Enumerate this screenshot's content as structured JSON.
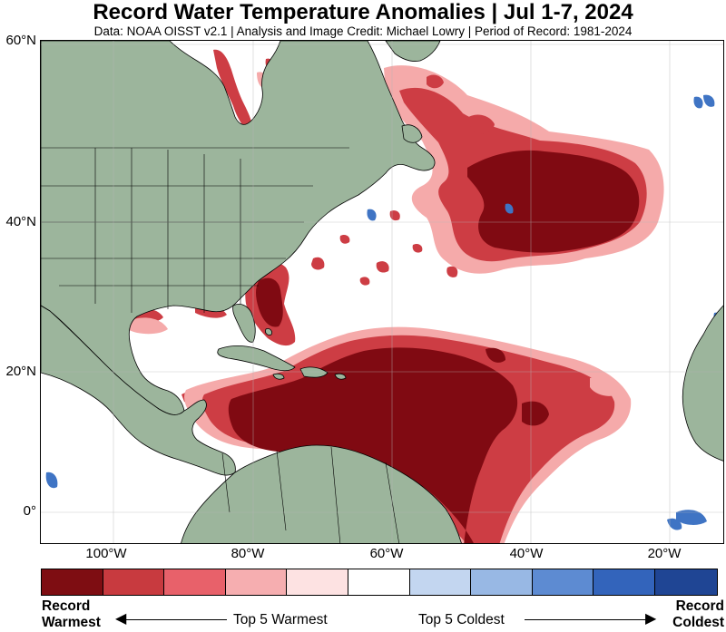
{
  "title": "Record Water Temperature Anomalies | Jul 1-7, 2024",
  "subtitle": "Data: NOAA OISST v2.1 | Analysis and Image Credit: Michael Lowry | Period of Record: 1981-2024",
  "map": {
    "lat_labels": [
      "60°N",
      "40°N",
      "20°N",
      "0°"
    ],
    "lon_labels": [
      "100°W",
      "80°W",
      "60°W",
      "40°W",
      "20°W"
    ],
    "colors": {
      "land": "#9cb59c",
      "ocean": "#ffffff",
      "grid": "#c8c8c8",
      "record_warm": "#800a12",
      "warm_mid": "#cd3d44",
      "warm_light": "#f5aaaa",
      "cold": "#3f74c4"
    }
  },
  "legend": {
    "swatches": [
      "#7e0d12",
      "#c83a3f",
      "#e8616a",
      "#f6aeb0",
      "#fde2e2",
      "#ffffff",
      "#c3d6f0",
      "#98b8e4",
      "#5d8bd2",
      "#3364bb",
      "#1f4594"
    ],
    "left_label_line1": "Record",
    "left_label_line2": "Warmest",
    "warm_label": "Top 5 Warmest",
    "cold_label": "Top 5 Coldest",
    "right_label_line1": "Record",
    "right_label_line2": "Coldest"
  }
}
